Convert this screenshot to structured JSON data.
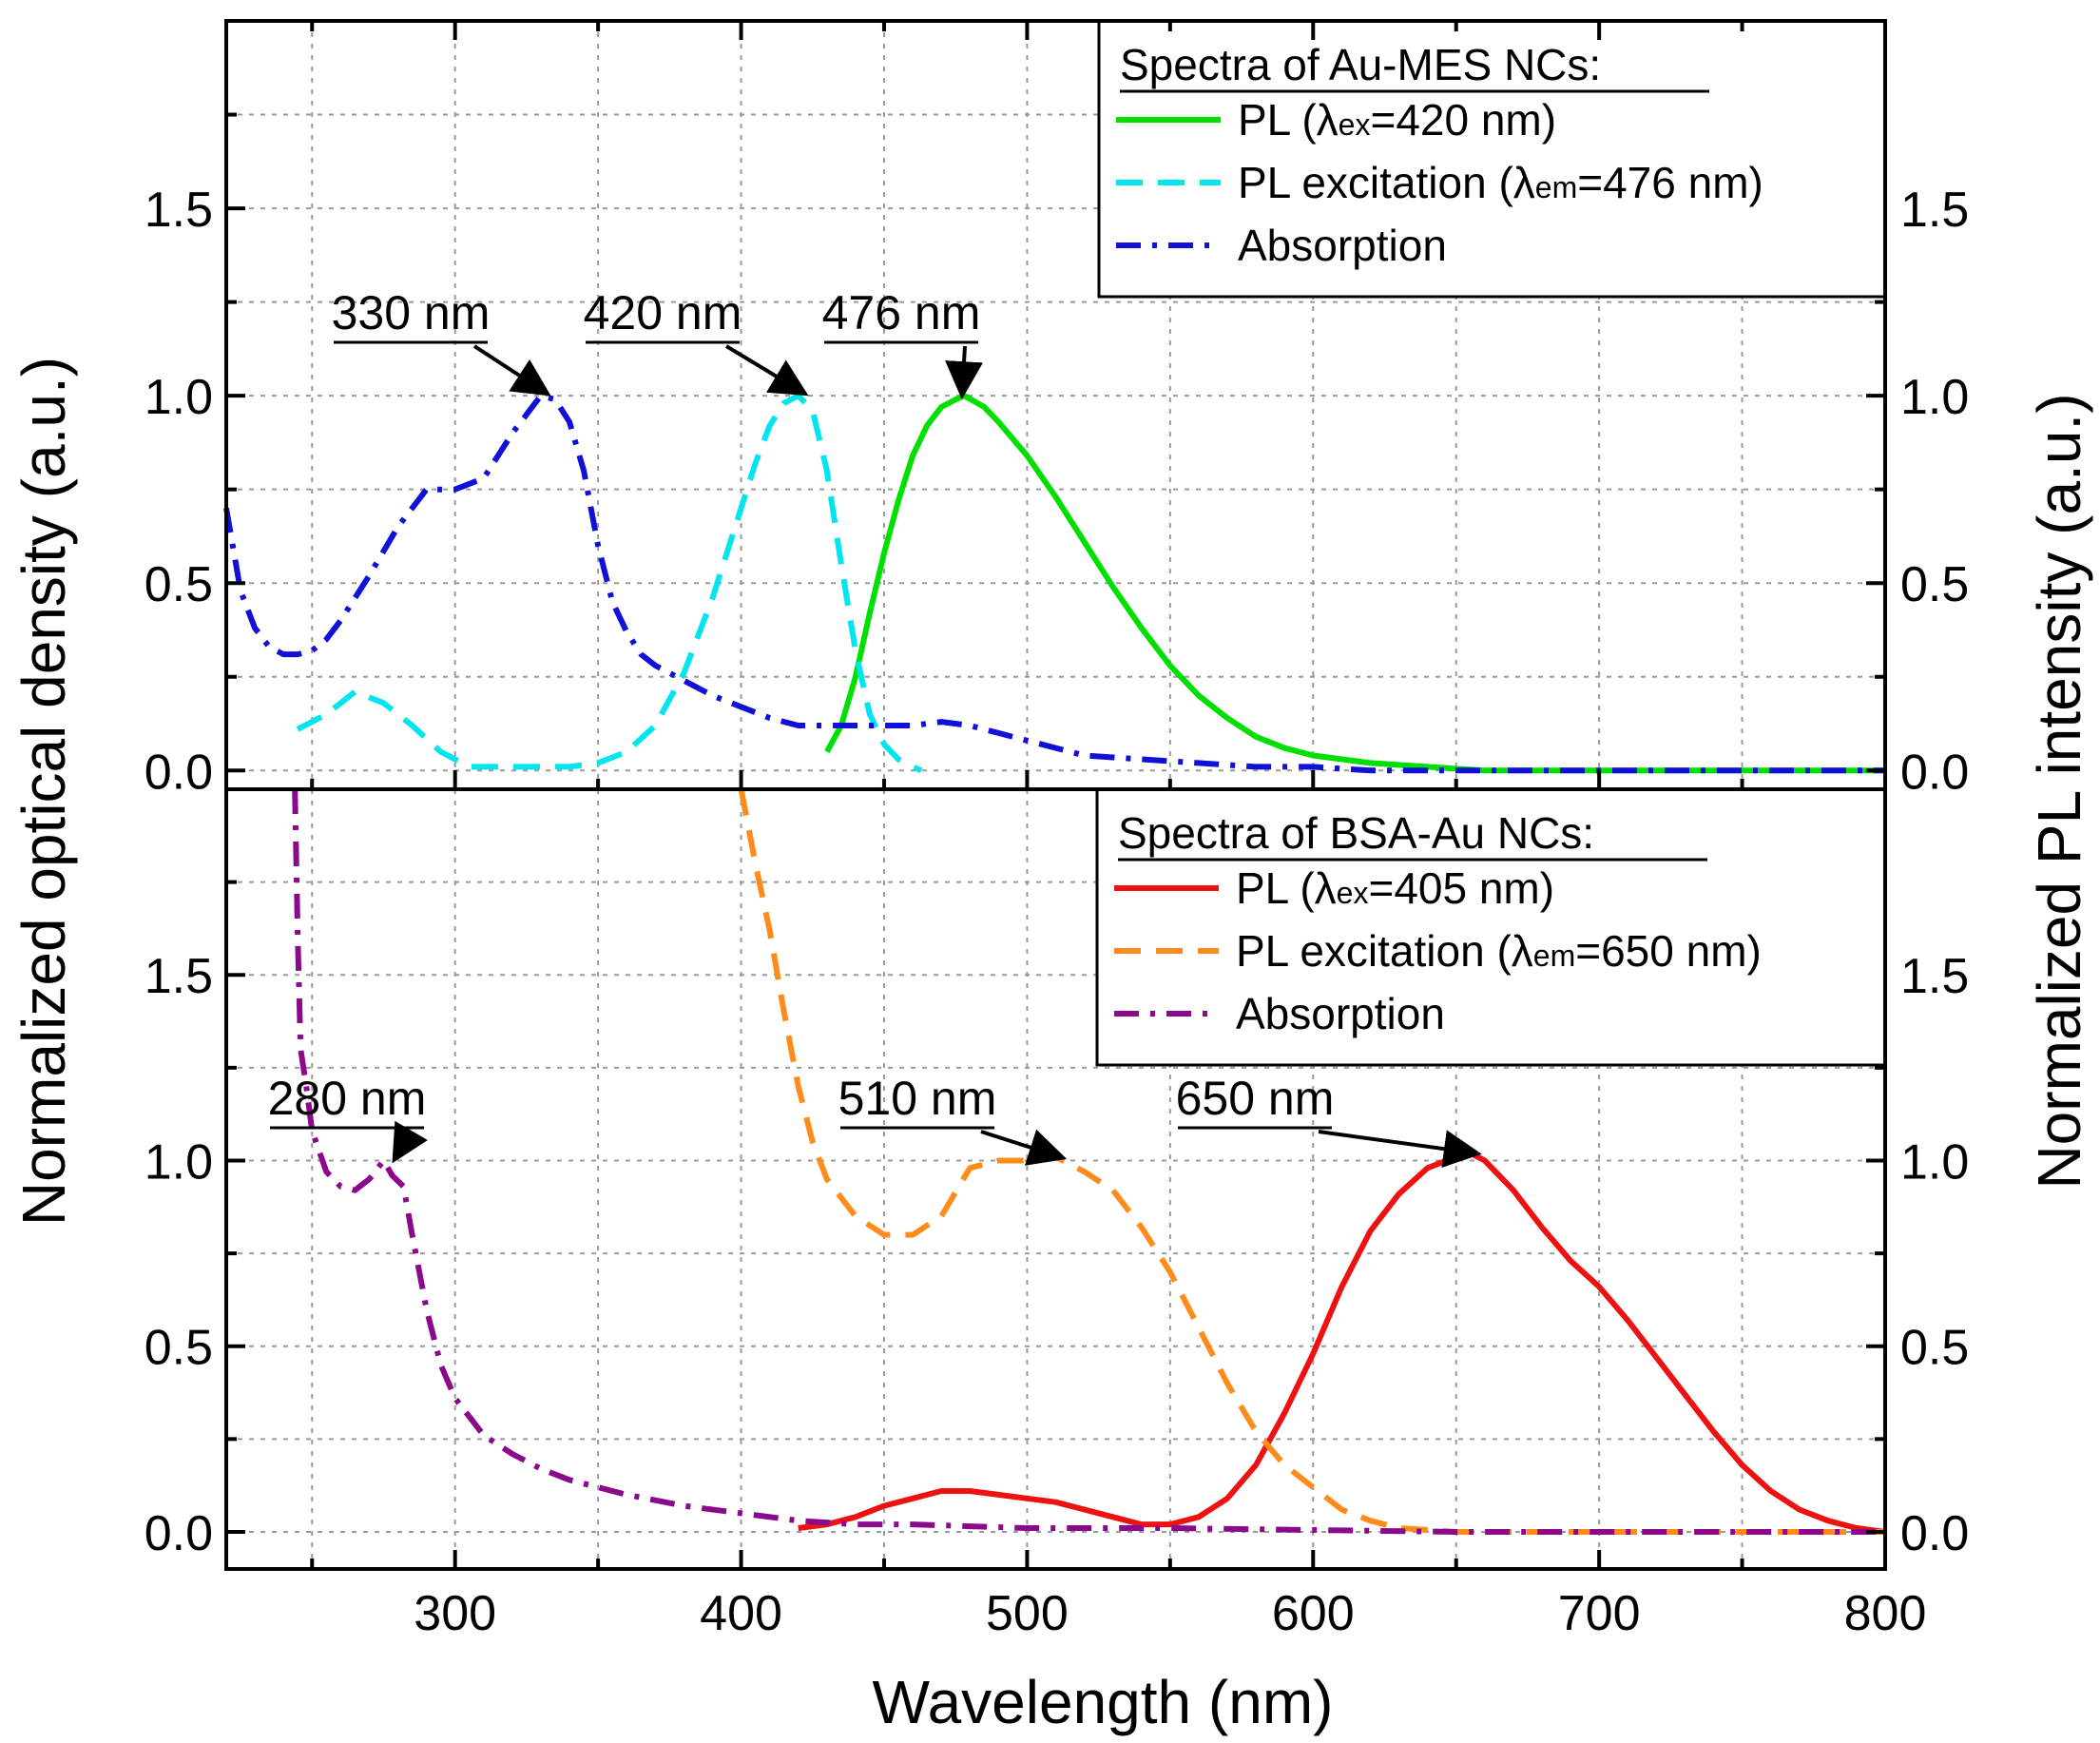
{
  "chart_data": {
    "type": "line",
    "x_axis": {
      "label": "Wavelength (nm)",
      "range": [
        220,
        800
      ],
      "ticks": [
        300,
        400,
        500,
        600,
        700,
        800
      ],
      "tick_labels": [
        "300",
        "400",
        "500",
        "600",
        "700",
        "800"
      ]
    },
    "y_axis_left": {
      "label": "Normalized optical density (a.u.)"
    },
    "y_axis_right": {
      "label": "Normalized PL intensity (a.u.)"
    },
    "grid": true,
    "panels": [
      {
        "id": "top",
        "ylim": [
          -0.05,
          2.0
        ],
        "ticks": [
          0.0,
          0.5,
          1.0,
          1.5
        ],
        "tick_labels": [
          "0.0",
          "0.5",
          "1.0",
          "1.5"
        ],
        "legend": {
          "position": "top-right",
          "title": "Spectra of Au-MES NCs:",
          "entries": [
            {
              "pre": "PL (",
              "lam": "λ",
              "sub": "ex",
              "post": "=420 nm)"
            },
            {
              "pre": "PL excitation (",
              "lam": "λ",
              "sub": "em",
              "post": "=476 nm)"
            },
            {
              "pre": "Absorption",
              "lam": "",
              "sub": "",
              "post": ""
            }
          ]
        },
        "series": [
          {
            "name": "PL (λex=420 nm)",
            "color": "#00e000",
            "dash": "solid",
            "x": [
              430,
              435,
              440,
              445,
              450,
              455,
              460,
              465,
              470,
              475,
              478,
              485,
              490,
              500,
              510,
              520,
              530,
              540,
              550,
              560,
              570,
              580,
              590,
              600,
              620,
              640,
              660,
              680,
              700,
              750,
              800
            ],
            "y": [
              0.05,
              0.12,
              0.25,
              0.42,
              0.58,
              0.72,
              0.84,
              0.92,
              0.97,
              0.99,
              1.0,
              0.97,
              0.93,
              0.84,
              0.73,
              0.61,
              0.49,
              0.38,
              0.28,
              0.2,
              0.14,
              0.09,
              0.06,
              0.04,
              0.02,
              0.01,
              0.0,
              0.0,
              0.0,
              0.0,
              0.0
            ]
          },
          {
            "name": "PL excitation (λem=476 nm)",
            "color": "#00e5ee",
            "dash": "dashed",
            "x": [
              245,
              255,
              265,
              275,
              285,
              295,
              305,
              320,
              340,
              350,
              360,
              370,
              380,
              390,
              400,
              405,
              410,
              415,
              420,
              425,
              430,
              435,
              440,
              445,
              450,
              455,
              460,
              463
            ],
            "y": [
              0.11,
              0.15,
              0.21,
              0.18,
              0.12,
              0.05,
              0.01,
              0.01,
              0.01,
              0.02,
              0.05,
              0.12,
              0.26,
              0.46,
              0.7,
              0.82,
              0.92,
              0.98,
              1.0,
              0.96,
              0.8,
              0.55,
              0.32,
              0.15,
              0.07,
              0.03,
              0.01,
              0.0
            ]
          },
          {
            "name": "Absorption",
            "color": "#1010d8",
            "dash": "dashdot",
            "x": [
              220,
              225,
              230,
              235,
              240,
              245,
              250,
              255,
              260,
              270,
              280,
              290,
              300,
              310,
              320,
              330,
              335,
              340,
              345,
              350,
              355,
              360,
              365,
              370,
              380,
              390,
              400,
              410,
              420,
              430,
              440,
              450,
              460,
              470,
              480,
              490,
              500,
              510,
              520,
              540,
              560,
              580,
              600,
              620,
              650,
              700,
              750,
              800
            ],
            "y": [
              0.7,
              0.48,
              0.38,
              0.33,
              0.31,
              0.31,
              0.32,
              0.35,
              0.4,
              0.52,
              0.65,
              0.75,
              0.75,
              0.78,
              0.9,
              1.0,
              0.99,
              0.93,
              0.8,
              0.6,
              0.45,
              0.37,
              0.31,
              0.28,
              0.24,
              0.2,
              0.17,
              0.14,
              0.12,
              0.12,
              0.12,
              0.12,
              0.12,
              0.13,
              0.12,
              0.1,
              0.08,
              0.06,
              0.04,
              0.03,
              0.02,
              0.01,
              0.01,
              0.0,
              0.0,
              0.0,
              0.0,
              0.0
            ]
          }
        ],
        "annotations": [
          {
            "text": "330 nm",
            "target": [
              330,
              1.0
            ]
          },
          {
            "text": "420 nm",
            "target": [
              420,
              1.0
            ]
          },
          {
            "text": "476 nm",
            "target": [
              476,
              1.0
            ]
          }
        ]
      },
      {
        "id": "bottom",
        "ylim": [
          -0.1,
          2.0
        ],
        "ticks": [
          0.0,
          0.5,
          1.0,
          1.5
        ],
        "tick_labels": [
          "0.0",
          "0.5",
          "1.0",
          "1.5"
        ],
        "legend": {
          "position": "top-right",
          "title": "Spectra of BSA-Au NCs:",
          "entries": [
            {
              "pre": "PL (",
              "lam": "λ",
              "sub": "ex",
              "post": "=405 nm)"
            },
            {
              "pre": "PL excitation (",
              "lam": "λ",
              "sub": "em",
              "post": "=650 nm)"
            },
            {
              "pre": "Absorption",
              "lam": "",
              "sub": "",
              "post": ""
            }
          ]
        },
        "series": [
          {
            "name": "PL (λex=405 nm)",
            "color": "#ee1111",
            "dash": "solid",
            "x": [
              420,
              430,
              440,
              450,
              460,
              470,
              480,
              490,
              500,
              510,
              520,
              530,
              540,
              550,
              560,
              570,
              580,
              590,
              600,
              610,
              620,
              630,
              640,
              650,
              655,
              660,
              670,
              680,
              690,
              700,
              710,
              720,
              730,
              740,
              750,
              760,
              770,
              780,
              790,
              800
            ],
            "y": [
              0.01,
              0.02,
              0.04,
              0.07,
              0.09,
              0.11,
              0.11,
              0.1,
              0.09,
              0.08,
              0.06,
              0.04,
              0.02,
              0.02,
              0.04,
              0.09,
              0.18,
              0.32,
              0.48,
              0.66,
              0.81,
              0.91,
              0.98,
              1.01,
              1.02,
              1.0,
              0.92,
              0.82,
              0.73,
              0.66,
              0.57,
              0.47,
              0.37,
              0.27,
              0.18,
              0.11,
              0.06,
              0.03,
              0.01,
              0.0
            ]
          },
          {
            "name": "PL excitation (λem=650 nm)",
            "color": "#ff8c1a",
            "dash": "dashed",
            "x": [
              400,
              405,
              410,
              415,
              420,
              425,
              430,
              440,
              450,
              460,
              470,
              480,
              490,
              500,
              510,
              520,
              530,
              540,
              550,
              560,
              570,
              580,
              590,
              600,
              610,
              620,
              630,
              650,
              700,
              800
            ],
            "y": [
              2.0,
              1.8,
              1.62,
              1.4,
              1.2,
              1.05,
              0.95,
              0.85,
              0.8,
              0.8,
              0.85,
              0.98,
              1.0,
              1.0,
              1.01,
              0.97,
              0.92,
              0.82,
              0.7,
              0.55,
              0.4,
              0.27,
              0.18,
              0.12,
              0.06,
              0.03,
              0.01,
              0.0,
              0.0,
              0.0
            ]
          },
          {
            "name": "Absorption",
            "color": "#8b0a8b",
            "dash": "dashdot",
            "x": [
              244,
              245,
              246,
              248,
              250,
              255,
              260,
              265,
              270,
              275,
              278,
              282,
              285,
              290,
              295,
              300,
              310,
              320,
              330,
              340,
              360,
              380,
              400,
              420,
              440,
              460,
              480,
              500,
              550,
              600,
              650,
              700,
              800
            ],
            "y": [
              2.0,
              1.6,
              1.3,
              1.2,
              1.08,
              0.97,
              0.93,
              0.92,
              0.95,
              1.0,
              0.96,
              0.93,
              0.8,
              0.6,
              0.45,
              0.36,
              0.26,
              0.21,
              0.17,
              0.14,
              0.1,
              0.07,
              0.05,
              0.03,
              0.02,
              0.02,
              0.015,
              0.01,
              0.01,
              0.005,
              0.0,
              0.0,
              0.0
            ]
          }
        ],
        "annotations": [
          {
            "text": "280 nm",
            "target": [
              278,
              1.0
            ]
          },
          {
            "text": "510 nm",
            "target": [
              510,
              1.0
            ]
          },
          {
            "text": "650 nm",
            "target": [
              655,
              1.01
            ]
          }
        ]
      }
    ]
  }
}
